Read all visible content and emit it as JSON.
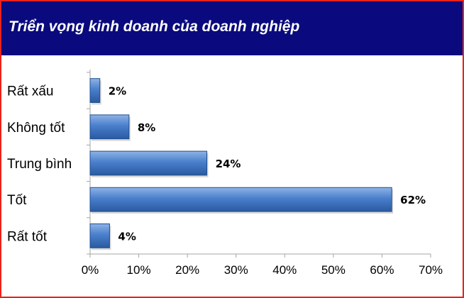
{
  "title": "Triển vọng kinh doanh của doanh nghiệp",
  "colors": {
    "frame": "#e8231c",
    "title_bg": "#0a0a7e",
    "bar": "#3f74c0",
    "bar_dark": "#1f4f8f"
  },
  "chart_data": {
    "type": "bar",
    "orientation": "horizontal",
    "title": "Triển vọng kinh doanh của doanh nghiệp",
    "categories": [
      "Rất xấu",
      "Không tốt",
      "Trung bình",
      "Tốt",
      "Rất tốt"
    ],
    "values": [
      2,
      8,
      24,
      62,
      4
    ],
    "value_labels": [
      "2%",
      "8%",
      "24%",
      "62%",
      "4%"
    ],
    "xlim": [
      0,
      70
    ],
    "x_ticks": [
      0,
      10,
      20,
      30,
      40,
      50,
      60,
      70
    ],
    "x_tick_labels": [
      "0%",
      "10%",
      "20%",
      "30%",
      "40%",
      "50%",
      "60%",
      "70%"
    ],
    "grid": false,
    "legend": "none"
  }
}
